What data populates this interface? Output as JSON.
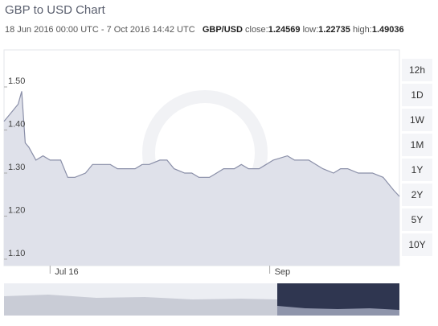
{
  "header": {
    "title": "GBP to USD Chart",
    "period": "18 Jun 2016 00:00 UTC - 7 Oct 2016 14:42 UTC",
    "pair": "GBP/USD",
    "close_label": "close:",
    "close": 1.24569,
    "low_label": "low:",
    "low": 1.22735,
    "high_label": "high:",
    "high": 1.49036
  },
  "controls": {
    "ranges": [
      "12h",
      "1D",
      "1W",
      "1M",
      "1Y",
      "2Y",
      "5Y",
      "10Y"
    ]
  },
  "chart_data": {
    "type": "area",
    "color": "#8a8fa8",
    "fill": "#dfe1ea",
    "x": [
      "2016-06-18",
      "2016-06-20",
      "2016-06-22",
      "2016-06-23",
      "2016-06-24",
      "2016-06-25",
      "2016-06-27",
      "2016-06-29",
      "2016-07-01",
      "2016-07-04",
      "2016-07-06",
      "2016-07-08",
      "2016-07-11",
      "2016-07-13",
      "2016-07-15",
      "2016-07-18",
      "2016-07-20",
      "2016-07-22",
      "2016-07-25",
      "2016-07-27",
      "2016-07-29",
      "2016-08-01",
      "2016-08-03",
      "2016-08-05",
      "2016-08-08",
      "2016-08-10",
      "2016-08-12",
      "2016-08-15",
      "2016-08-17",
      "2016-08-19",
      "2016-08-22",
      "2016-08-24",
      "2016-08-26",
      "2016-08-29",
      "2016-08-31",
      "2016-09-02",
      "2016-09-06",
      "2016-09-08",
      "2016-09-12",
      "2016-09-14",
      "2016-09-16",
      "2016-09-19",
      "2016-09-21",
      "2016-09-23",
      "2016-09-26",
      "2016-09-28",
      "2016-09-30",
      "2016-10-03",
      "2016-10-05",
      "2016-10-06",
      "2016-10-07T14:42"
    ],
    "values": [
      1.42,
      1.44,
      1.46,
      1.49,
      1.37,
      1.36,
      1.33,
      1.34,
      1.33,
      1.33,
      1.29,
      1.29,
      1.3,
      1.32,
      1.32,
      1.32,
      1.31,
      1.31,
      1.31,
      1.32,
      1.32,
      1.33,
      1.33,
      1.31,
      1.3,
      1.3,
      1.29,
      1.29,
      1.3,
      1.31,
      1.31,
      1.32,
      1.31,
      1.31,
      1.32,
      1.33,
      1.34,
      1.33,
      1.33,
      1.32,
      1.31,
      1.3,
      1.31,
      1.31,
      1.3,
      1.3,
      1.3,
      1.29,
      1.27,
      1.26,
      1.24569
    ],
    "xlim": [
      "2016-06-18T00:00",
      "2016-10-07T14:42"
    ],
    "xticks": [
      {
        "value": "2016-07-01",
        "label": "Jul 16"
      },
      {
        "value": "2016-09-01",
        "label": "Sep"
      }
    ],
    "ylim": [
      1.085,
      1.586
    ],
    "yticks": [
      {
        "value": 1.1,
        "label": "1.10"
      },
      {
        "value": 1.2,
        "label": "1.20"
      },
      {
        "value": 1.3,
        "label": "1.30"
      },
      {
        "value": 1.4,
        "label": "1.40"
      },
      {
        "value": 1.5,
        "label": "1.50"
      }
    ]
  }
}
